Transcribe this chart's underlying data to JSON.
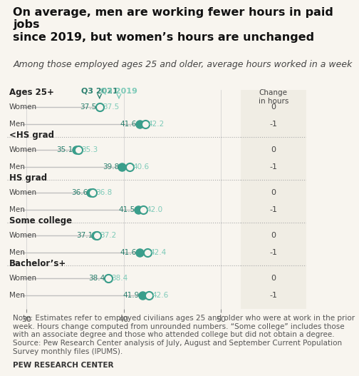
{
  "title": "On average, men are working fewer hours in paid jobs\nsince 2019, but women’s hours are unchanged",
  "subtitle": "Among those employed ages 25 and older, average hours worked in a week",
  "note": "Note: Estimates refer to employed civilians ages 25 and older who were at work in the prior week. Hours change computed from unrounded numbers. “Some college” includes those with an associate degree and those who attended college but did not obtain a degree.\nSource: Pew Research Center analysis of July, August and September Current Population Survey monthly files (IPUMS).",
  "source": "PEW RESEARCH CENTER",
  "legend_2021": "Q3 2021",
  "legend_2019": "Q3 2019",
  "change_label": "Change\nin hours",
  "xlim": [
    28,
    52
  ],
  "xticks": [
    30,
    40,
    50
  ],
  "groups": [
    {
      "group": "Ages 25+",
      "women_2021": 37.5,
      "women_2019": 37.5,
      "men_2021": 41.6,
      "men_2019": 42.2,
      "women_change": 0,
      "men_change": -1
    },
    {
      "group": "<HS grad",
      "women_2021": 35.1,
      "women_2019": 35.3,
      "men_2021": 39.8,
      "men_2019": 40.6,
      "women_change": 0,
      "men_change": -1
    },
    {
      "group": "HS grad",
      "women_2021": 36.6,
      "women_2019": 36.8,
      "men_2021": 41.5,
      "men_2019": 42.0,
      "women_change": 0,
      "men_change": -1
    },
    {
      "group": "Some college",
      "women_2021": 37.1,
      "women_2019": 37.2,
      "men_2021": 41.6,
      "men_2019": 42.4,
      "women_change": 0,
      "men_change": -1
    },
    {
      "group": "Bachelor’s+",
      "women_2021": 38.4,
      "women_2019": 38.4,
      "men_2021": 41.9,
      "men_2019": 42.6,
      "women_change": 0,
      "men_change": -1
    }
  ],
  "color_2021_filled": "#3a9e8b",
  "color_2019_open": "#7dcab8",
  "color_line": "#c0c0c0",
  "color_label_2021": "#2a7f6e",
  "color_label_2019": "#7dcab8",
  "bg_color": "#f8f5ef",
  "right_panel_color": "#f0ede4",
  "title_fontsize": 11.5,
  "subtitle_fontsize": 9,
  "note_fontsize": 7.5
}
